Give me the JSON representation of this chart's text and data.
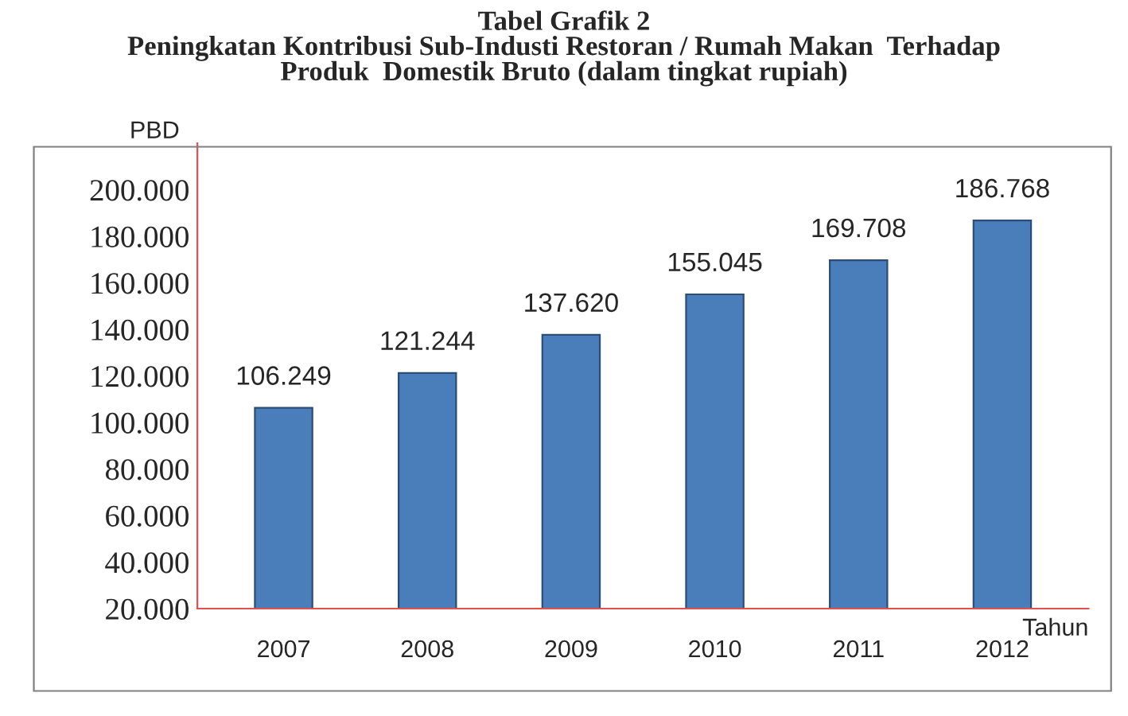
{
  "chart_data": {
    "type": "bar",
    "title": "Tabel Grafik 2\nPeningkatan Kontribusi Sub-Industi Restoran / Rumah Makan  Terhadap\nProduk  Domestik Bruto (dalam tingkat rupiah)",
    "ylabel": "PBD",
    "xlabel": "Tahun",
    "categories": [
      "2007",
      "2008",
      "2009",
      "2010",
      "2011",
      "2012"
    ],
    "values": [
      106249,
      121244,
      137620,
      155045,
      169708,
      186768
    ],
    "value_labels": [
      "106.249",
      "121.244",
      "137.620",
      "155.045",
      "169.708",
      "186.768"
    ],
    "color": "#4a7ebb",
    "ylim": [
      20000,
      220000
    ],
    "yticks": [
      {
        "value": 20000,
        "label": "20.000"
      },
      {
        "value": 40000,
        "label": "40.000"
      },
      {
        "value": 60000,
        "label": "60.000"
      },
      {
        "value": 80000,
        "label": "80.000"
      },
      {
        "value": 100000,
        "label": "100.000"
      },
      {
        "value": 120000,
        "label": "120.000"
      },
      {
        "value": 140000,
        "label": "140.000"
      },
      {
        "value": 160000,
        "label": "160.000"
      },
      {
        "value": 180000,
        "label": "180.000"
      },
      {
        "value": 200000,
        "label": "200.000"
      }
    ],
    "grid": false,
    "legend": false
  }
}
